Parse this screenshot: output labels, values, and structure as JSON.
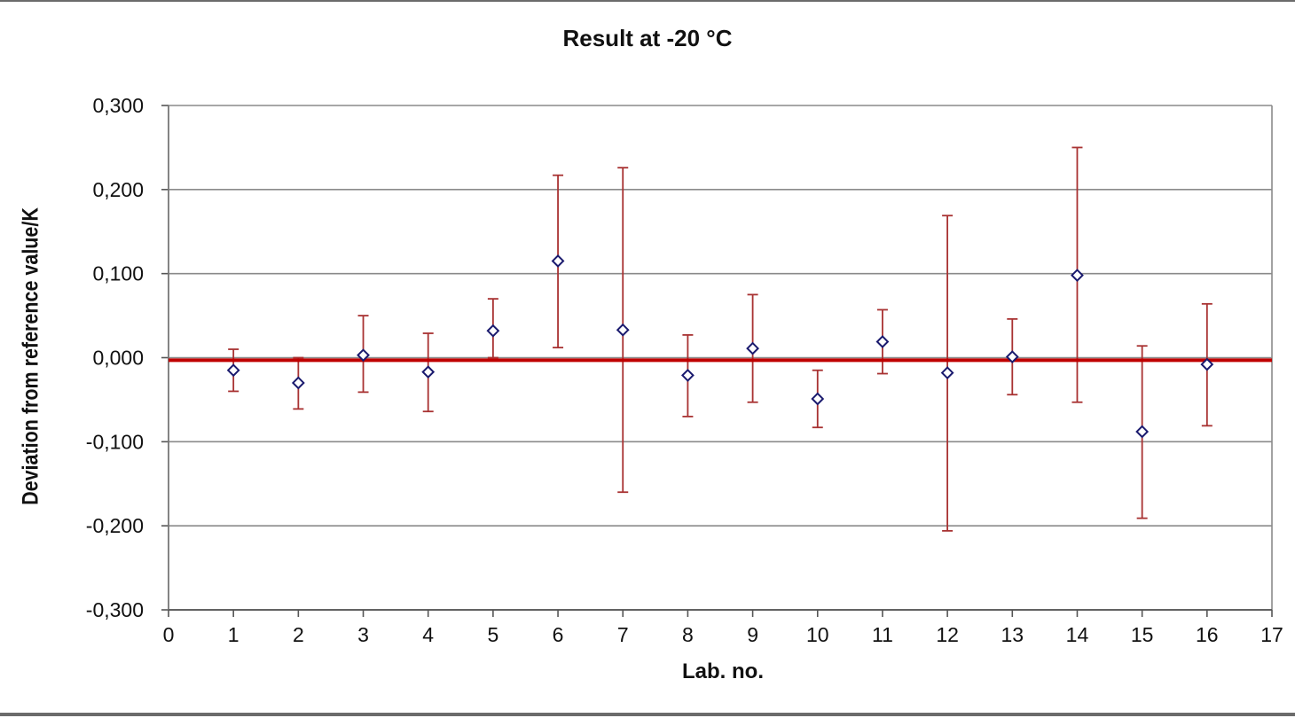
{
  "chart_data": {
    "type": "scatter",
    "title": "Result at -20 °C",
    "xlabel": "Lab. no.",
    "ylabel": "Deviation from reference value/K",
    "xlim": [
      0,
      17
    ],
    "ylim": [
      -0.3,
      0.3
    ],
    "x_ticks": [
      "0",
      "1",
      "2",
      "3",
      "4",
      "5",
      "6",
      "7",
      "8",
      "9",
      "10",
      "11",
      "12",
      "13",
      "14",
      "15",
      "16",
      "17"
    ],
    "y_ticks": [
      "0,300",
      "0,200",
      "0,100",
      "0,000",
      "-0,100",
      "-0,200",
      "-0,300"
    ],
    "y_tick_values": [
      0.3,
      0.2,
      0.1,
      0.0,
      -0.1,
      -0.2,
      -0.3
    ],
    "grid": "horizontal",
    "reference_line": {
      "y": -0.003,
      "color": "#c00000"
    },
    "marker_color": "#1a1a6e",
    "error_bar_color": "#a83232",
    "points": [
      {
        "x": 1,
        "y": -0.015,
        "low": -0.04,
        "high": 0.01
      },
      {
        "x": 2,
        "y": -0.03,
        "low": -0.061,
        "high": 0.0
      },
      {
        "x": 3,
        "y": 0.003,
        "low": -0.041,
        "high": 0.05
      },
      {
        "x": 4,
        "y": -0.017,
        "low": -0.064,
        "high": 0.029
      },
      {
        "x": 5,
        "y": 0.032,
        "low": 0.0,
        "high": 0.07
      },
      {
        "x": 6,
        "y": 0.115,
        "low": 0.012,
        "high": 0.217
      },
      {
        "x": 7,
        "y": 0.033,
        "low": -0.16,
        "high": 0.226
      },
      {
        "x": 8,
        "y": -0.021,
        "low": -0.07,
        "high": 0.027
      },
      {
        "x": 9,
        "y": 0.011,
        "low": -0.053,
        "high": 0.075
      },
      {
        "x": 10,
        "y": -0.049,
        "low": -0.083,
        "high": -0.015
      },
      {
        "x": 11,
        "y": 0.019,
        "low": -0.019,
        "high": 0.057
      },
      {
        "x": 12,
        "y": -0.018,
        "low": -0.206,
        "high": 0.169
      },
      {
        "x": 13,
        "y": 0.001,
        "low": -0.044,
        "high": 0.046
      },
      {
        "x": 14,
        "y": 0.098,
        "low": -0.053,
        "high": 0.25
      },
      {
        "x": 15,
        "y": -0.088,
        "low": -0.191,
        "high": 0.014
      },
      {
        "x": 16,
        "y": -0.008,
        "low": -0.081,
        "high": 0.064
      }
    ]
  }
}
